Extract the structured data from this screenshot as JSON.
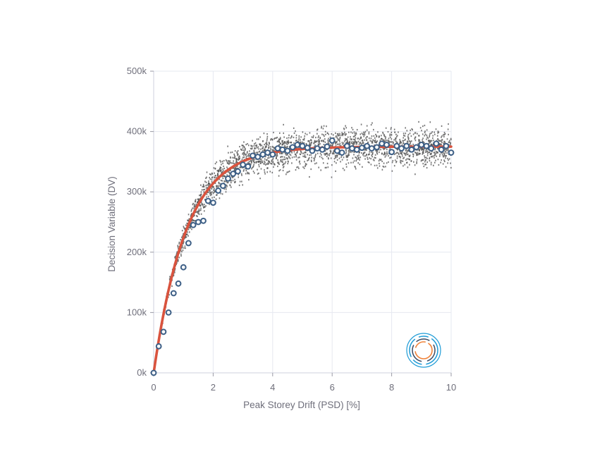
{
  "chart_data": {
    "type": "scatter",
    "xlabel": "Peak Storey Drift (PSD) [%]",
    "ylabel": "Decision Variable (DV)",
    "xlim": [
      0,
      10
    ],
    "ylim": [
      0,
      500000
    ],
    "x_ticks": [
      "0",
      "2",
      "4",
      "6",
      "8",
      "10"
    ],
    "y_ticks": [
      "0k",
      "100k",
      "200k",
      "300k",
      "400k",
      "500k"
    ],
    "x_tick_values": [
      0,
      2,
      4,
      6,
      8,
      10
    ],
    "y_tick_values": [
      0,
      100000,
      200000,
      300000,
      400000,
      500000
    ],
    "grid": true,
    "series": [
      {
        "kind": "scatter-cloud",
        "color": "#555555",
        "model": {
          "function": "375000*(1-exp(-x/1.1))",
          "spread": "~10%",
          "x_range": [
            0,
            10
          ]
        }
      },
      {
        "kind": "median-markers",
        "color": "#3d5f86",
        "x": [
          0,
          0.17,
          0.33,
          0.5,
          0.67,
          0.83,
          1.0,
          1.17,
          1.33,
          1.5,
          1.67,
          1.83,
          2.0,
          2.17,
          2.33,
          2.5,
          2.67,
          2.83,
          3.0,
          3.17,
          3.33,
          3.5,
          3.67,
          3.83,
          4.0,
          4.17,
          4.33,
          4.5,
          4.67,
          4.83,
          5.0,
          5.17,
          5.33,
          5.5,
          5.67,
          5.83,
          6.0,
          6.17,
          6.33,
          6.5,
          6.67,
          6.83,
          7.0,
          7.17,
          7.33,
          7.5,
          7.67,
          7.83,
          8.0,
          8.17,
          8.33,
          8.5,
          8.67,
          8.83,
          9.0,
          9.17,
          9.33,
          9.5,
          9.67,
          9.83,
          10.0
        ],
        "y": [
          0,
          44000,
          68000,
          100000,
          132000,
          148000,
          175000,
          215000,
          245000,
          250000,
          252000,
          285000,
          282000,
          302000,
          310000,
          322000,
          330000,
          334000,
          345000,
          342000,
          360000,
          358000,
          362000,
          365000,
          362000,
          372000,
          370000,
          368000,
          374000,
          378000,
          376000,
          373000,
          368000,
          372000,
          370000,
          375000,
          385000,
          368000,
          365000,
          376000,
          372000,
          370000,
          373000,
          376000,
          372000,
          374000,
          380000,
          378000,
          366000,
          376000,
          372000,
          376000,
          370000,
          374000,
          378000,
          376000,
          372000,
          380000,
          370000,
          376000,
          365000
        ]
      },
      {
        "kind": "fit-curve",
        "color": "#d9533e",
        "function": "375000*(1-exp(-x/1.1))"
      }
    ]
  },
  "logo": {
    "icon": "circular-logo-icon",
    "colors": [
      "#1d9bd6",
      "#f0833a",
      "#3b4a63"
    ]
  }
}
